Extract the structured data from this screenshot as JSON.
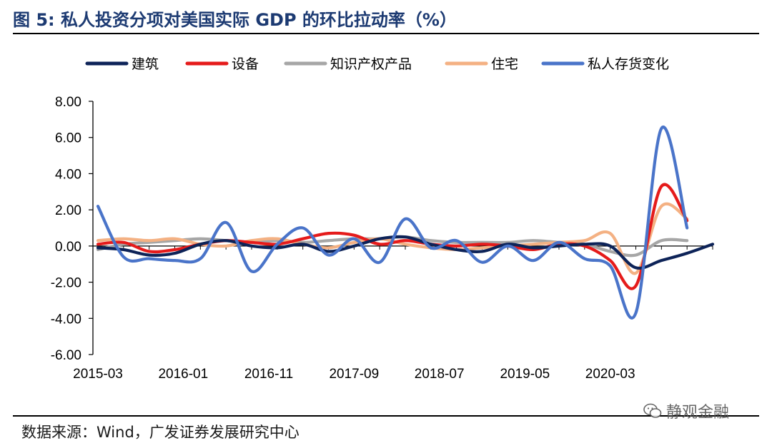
{
  "header": {
    "title": "图 5:  私人投资分项对美国实际 GDP 的环比拉动率（%）"
  },
  "footer": {
    "source": "数据来源：Wind，广发证券发展研究中心"
  },
  "watermark": {
    "text": "静观金融",
    "icon": "wechat-icon"
  },
  "chart_data": {
    "type": "line",
    "title": "私人投资分项对美国实际 GDP 的环比拉动率（%）",
    "xlabel": "",
    "ylabel": "",
    "ylim": [
      -6,
      8
    ],
    "yticks": [
      "8.00",
      "6.00",
      "4.00",
      "2.00",
      "0.00",
      "-2.00",
      "-4.00",
      "-6.00"
    ],
    "ytick_values": [
      8,
      6,
      4,
      2,
      0,
      -2,
      -4,
      -6
    ],
    "x": [
      "2015-03",
      "2015-06",
      "2015-09",
      "2015-12",
      "2016-03",
      "2016-06",
      "2016-09",
      "2016-12",
      "2017-03",
      "2017-06",
      "2017-09",
      "2017-12",
      "2018-03",
      "2018-06",
      "2018-09",
      "2018-12",
      "2019-03",
      "2019-06",
      "2019-09",
      "2019-12",
      "2020-03",
      "2020-06",
      "2020-09",
      "2020-12",
      "2021-03"
    ],
    "xtick_labels": [
      "2015-03",
      "2016-01",
      "2016-11",
      "2017-09",
      "2018-07",
      "2019-05",
      "2020-03"
    ],
    "xtick_positions": [
      0,
      3.33,
      6.67,
      10,
      13.33,
      16.67,
      20
    ],
    "legend_position": "top",
    "grid": false,
    "series": [
      {
        "name": "建筑",
        "color": "#0d2358",
        "values": [
          -0.1,
          -0.2,
          -0.5,
          -0.4,
          0.1,
          0.3,
          0.0,
          -0.1,
          0.1,
          -0.3,
          0.0,
          0.4,
          0.5,
          0.1,
          -0.2,
          -0.3,
          0.1,
          -0.1,
          0.0,
          0.1,
          0.0,
          -1.2,
          -0.8,
          -0.4,
          0.1
        ]
      },
      {
        "name": "设备",
        "color": "#e51b1b",
        "values": [
          0.1,
          0.2,
          -0.3,
          -0.2,
          0.1,
          0.3,
          0.2,
          0.1,
          0.4,
          0.7,
          0.6,
          0.1,
          0.3,
          0.1,
          0.0,
          0.1,
          0.0,
          -0.2,
          0.1,
          0.0,
          -0.8,
          -2.2,
          3.3,
          1.4,
          null
        ]
      },
      {
        "name": "知识产权产品",
        "color": "#a6a6a6",
        "values": [
          -0.2,
          0.1,
          0.2,
          0.3,
          0.4,
          0.3,
          0.2,
          0.3,
          0.2,
          0.3,
          0.4,
          0.4,
          0.5,
          0.3,
          0.2,
          0.2,
          0.2,
          0.3,
          0.2,
          0.1,
          -0.3,
          -0.5,
          0.3,
          0.3,
          null
        ]
      },
      {
        "name": "住宅",
        "color": "#f4b183",
        "values": [
          0.3,
          0.4,
          0.3,
          0.4,
          0.1,
          0.0,
          0.3,
          0.4,
          0.1,
          -0.1,
          0.2,
          0.4,
          0.1,
          -0.1,
          -0.2,
          -0.1,
          0.0,
          0.1,
          0.2,
          0.3,
          0.7,
          -1.5,
          2.2,
          1.5,
          null
        ]
      },
      {
        "name": "私人存货变化",
        "color": "#4a74c9",
        "values": [
          2.2,
          -0.6,
          -0.7,
          -0.8,
          -0.7,
          1.3,
          -1.4,
          0.1,
          1.0,
          -0.5,
          0.4,
          -0.9,
          1.5,
          -0.1,
          0.3,
          -0.9,
          0.0,
          -0.8,
          0.2,
          -0.7,
          -1.1,
          -3.7,
          6.5,
          1.0,
          null
        ]
      }
    ]
  }
}
